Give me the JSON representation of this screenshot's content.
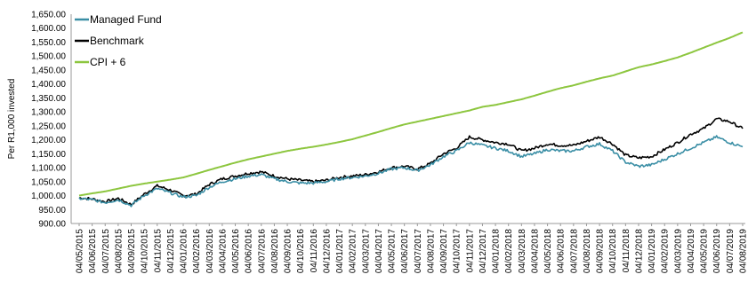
{
  "chart_data": {
    "type": "line",
    "ylabel": "Per R1,000 invested",
    "xlabel": "",
    "title": "",
    "ylim": [
      900,
      1650
    ],
    "yticks": [
      "900.00",
      "950.00",
      "1,000.00",
      "1,050.00",
      "1,100.00",
      "1,150.00",
      "1,200.00",
      "1,250.00",
      "1,300.00",
      "1,350.00",
      "1,400.00",
      "1,450.00",
      "1,500.00",
      "1,550.00",
      "1,600.00",
      "1,650.00"
    ],
    "categories": [
      "04/05/2015",
      "04/06/2015",
      "04/07/2015",
      "04/08/2015",
      "04/09/2015",
      "04/10/2015",
      "04/11/2015",
      "04/12/2015",
      "04/01/2016",
      "04/02/2016",
      "04/03/2016",
      "04/04/2016",
      "04/05/2016",
      "04/06/2016",
      "04/07/2016",
      "04/08/2016",
      "04/09/2016",
      "04/10/2016",
      "04/11/2016",
      "04/12/2016",
      "04/01/2017",
      "04/02/2017",
      "04/03/2017",
      "04/04/2017",
      "04/05/2017",
      "04/06/2017",
      "04/07/2017",
      "04/08/2017",
      "04/09/2017",
      "04/10/2017",
      "04/11/2017",
      "04/12/2017",
      "04/01/2018",
      "04/02/2018",
      "04/03/2018",
      "04/04/2018",
      "04/05/2018",
      "04/06/2018",
      "04/07/2018",
      "04/08/2018",
      "04/09/2018",
      "04/10/2018",
      "04/11/2018",
      "04/12/2018",
      "04/01/2019",
      "04/02/2019",
      "04/03/2019",
      "04/04/2019",
      "04/05/2019",
      "04/06/2019",
      "04/07/2019",
      "04/08/2019"
    ],
    "legend_position": "top-left",
    "series": [
      {
        "name": "Managed Fund",
        "color": "#3a8ea5",
        "values": [
          990,
          985,
          975,
          985,
          965,
          1000,
          1025,
          1010,
          995,
          1000,
          1030,
          1050,
          1060,
          1070,
          1075,
          1060,
          1050,
          1045,
          1045,
          1050,
          1060,
          1065,
          1070,
          1080,
          1095,
          1100,
          1090,
          1110,
          1140,
          1160,
          1190,
          1180,
          1170,
          1160,
          1140,
          1150,
          1165,
          1160,
          1160,
          1175,
          1185,
          1160,
          1120,
          1105,
          1110,
          1130,
          1150,
          1170,
          1190,
          1210,
          1190,
          1175
        ]
      },
      {
        "name": "Benchmark",
        "color": "#000000",
        "values": [
          992,
          988,
          978,
          990,
          968,
          1005,
          1035,
          1020,
          1000,
          1005,
          1040,
          1060,
          1070,
          1080,
          1085,
          1070,
          1060,
          1055,
          1050,
          1055,
          1065,
          1070,
          1075,
          1085,
          1100,
          1105,
          1095,
          1115,
          1150,
          1170,
          1210,
          1200,
          1190,
          1185,
          1160,
          1170,
          1185,
          1180,
          1180,
          1195,
          1210,
          1185,
          1145,
          1135,
          1140,
          1165,
          1190,
          1220,
          1240,
          1275,
          1265,
          1240
        ]
      },
      {
        "name": "CPI + 6",
        "color": "#8dc63f",
        "values": [
          1000,
          1008,
          1015,
          1025,
          1035,
          1043,
          1050,
          1057,
          1065,
          1078,
          1092,
          1105,
          1118,
          1130,
          1140,
          1150,
          1160,
          1168,
          1175,
          1183,
          1192,
          1202,
          1215,
          1228,
          1242,
          1255,
          1265,
          1275,
          1285,
          1295,
          1305,
          1318,
          1325,
          1335,
          1345,
          1358,
          1372,
          1385,
          1395,
          1408,
          1420,
          1430,
          1445,
          1460,
          1470,
          1482,
          1495,
          1512,
          1530,
          1548,
          1565,
          1585
        ]
      }
    ]
  }
}
